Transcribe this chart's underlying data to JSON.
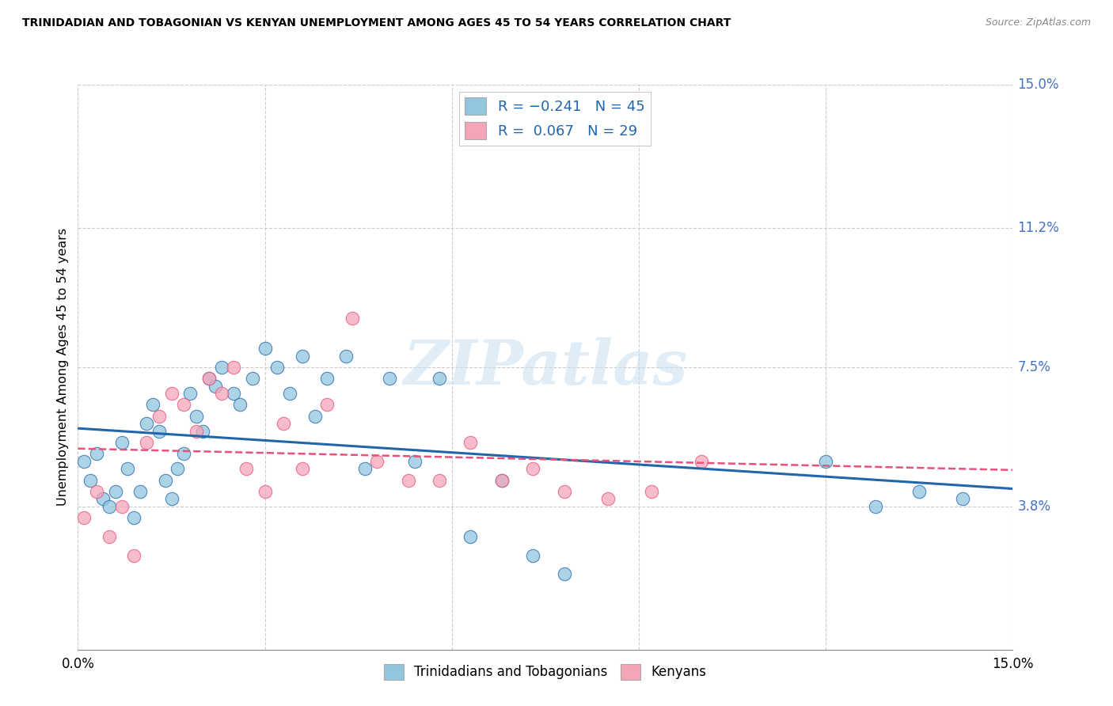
{
  "title": "TRINIDADIAN AND TOBAGONIAN VS KENYAN UNEMPLOYMENT AMONG AGES 45 TO 54 YEARS CORRELATION CHART",
  "source": "Source: ZipAtlas.com",
  "ylabel": "Unemployment Among Ages 45 to 54 years",
  "xlim": [
    0.0,
    0.15
  ],
  "ylim": [
    0.0,
    0.15
  ],
  "xtick_vals": [
    0.0,
    0.03,
    0.06,
    0.09,
    0.12,
    0.15
  ],
  "xtick_labels": [
    "0.0%",
    "",
    "",
    "",
    "",
    "15.0%"
  ],
  "ytick_labels_right": [
    "3.8%",
    "7.5%",
    "11.2%",
    "15.0%"
  ],
  "ytick_values_right": [
    0.038,
    0.075,
    0.112,
    0.15
  ],
  "watermark": "ZIPatlas",
  "legend_label1": "Trinidadians and Tobagonians",
  "legend_label2": "Kenyans",
  "blue_color": "#92c5de",
  "pink_color": "#f4a6b8",
  "blue_line_color": "#2166ac",
  "pink_line_color": "#e8527a",
  "trinidadian_x": [
    0.001,
    0.002,
    0.003,
    0.004,
    0.005,
    0.006,
    0.007,
    0.008,
    0.009,
    0.01,
    0.011,
    0.012,
    0.013,
    0.014,
    0.015,
    0.016,
    0.017,
    0.018,
    0.019,
    0.02,
    0.021,
    0.022,
    0.023,
    0.025,
    0.026,
    0.028,
    0.03,
    0.032,
    0.034,
    0.036,
    0.038,
    0.04,
    0.043,
    0.046,
    0.05,
    0.054,
    0.058,
    0.063,
    0.068,
    0.073,
    0.078,
    0.12,
    0.128,
    0.135,
    0.142
  ],
  "trinidadian_y": [
    0.05,
    0.045,
    0.052,
    0.04,
    0.038,
    0.042,
    0.055,
    0.048,
    0.035,
    0.042,
    0.06,
    0.065,
    0.058,
    0.045,
    0.04,
    0.048,
    0.052,
    0.068,
    0.062,
    0.058,
    0.072,
    0.07,
    0.075,
    0.068,
    0.065,
    0.072,
    0.08,
    0.075,
    0.068,
    0.078,
    0.062,
    0.072,
    0.078,
    0.048,
    0.072,
    0.05,
    0.072,
    0.03,
    0.045,
    0.025,
    0.02,
    0.05,
    0.038,
    0.042,
    0.04
  ],
  "kenyan_x": [
    0.001,
    0.003,
    0.005,
    0.007,
    0.009,
    0.011,
    0.013,
    0.015,
    0.017,
    0.019,
    0.021,
    0.023,
    0.025,
    0.027,
    0.03,
    0.033,
    0.036,
    0.04,
    0.044,
    0.048,
    0.053,
    0.058,
    0.063,
    0.068,
    0.073,
    0.078,
    0.085,
    0.092,
    0.1
  ],
  "kenyan_y": [
    0.035,
    0.042,
    0.03,
    0.038,
    0.025,
    0.055,
    0.062,
    0.068,
    0.065,
    0.058,
    0.072,
    0.068,
    0.075,
    0.048,
    0.042,
    0.06,
    0.048,
    0.065,
    0.088,
    0.05,
    0.045,
    0.045,
    0.055,
    0.045,
    0.048,
    0.042,
    0.04,
    0.042,
    0.05
  ]
}
